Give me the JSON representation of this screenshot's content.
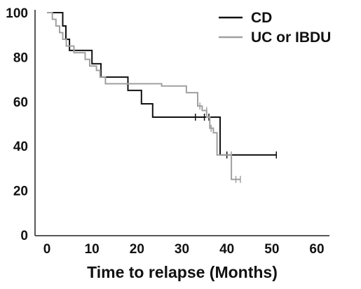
{
  "chart_data": {
    "type": "line",
    "title": "",
    "xlabel": "Time to relapse (Months)",
    "ylabel": "",
    "xlim": [
      0,
      60
    ],
    "ylim": [
      0,
      100
    ],
    "x_ticks": [
      0,
      10,
      20,
      30,
      40,
      50,
      60
    ],
    "y_ticks": [
      0,
      20,
      40,
      60,
      80,
      100
    ],
    "grid": false,
    "legend_position": "top-right",
    "series": [
      {
        "name": "CD",
        "color": "#111111",
        "step": true,
        "points": [
          [
            0,
            100
          ],
          [
            3.5,
            100
          ],
          [
            3.5,
            94
          ],
          [
            4.2,
            94
          ],
          [
            4.2,
            88
          ],
          [
            5,
            88
          ],
          [
            5,
            83
          ],
          [
            10,
            83
          ],
          [
            10,
            77
          ],
          [
            12,
            77
          ],
          [
            12,
            71
          ],
          [
            18,
            71
          ],
          [
            18,
            65
          ],
          [
            21,
            65
          ],
          [
            21,
            59
          ],
          [
            23.5,
            59
          ],
          [
            23.5,
            53
          ],
          [
            38.5,
            53
          ],
          [
            38.5,
            36
          ],
          [
            51,
            36
          ]
        ],
        "censored": [
          [
            33,
            53
          ],
          [
            35,
            53
          ],
          [
            36,
            53
          ],
          [
            40,
            36
          ],
          [
            51,
            36
          ]
        ]
      },
      {
        "name": "UC or IBDU",
        "color": "#a0a0a0",
        "step": true,
        "points": [
          [
            0,
            100
          ],
          [
            1.2,
            100
          ],
          [
            1.2,
            97
          ],
          [
            2,
            97
          ],
          [
            2,
            94
          ],
          [
            2.8,
            94
          ],
          [
            2.8,
            91
          ],
          [
            3.5,
            91
          ],
          [
            3.5,
            88
          ],
          [
            4.3,
            88
          ],
          [
            4.3,
            85
          ],
          [
            6,
            85
          ],
          [
            6,
            82
          ],
          [
            8.5,
            82
          ],
          [
            8.5,
            79
          ],
          [
            9.5,
            79
          ],
          [
            9.5,
            76
          ],
          [
            11,
            76
          ],
          [
            11,
            74
          ],
          [
            11.8,
            74
          ],
          [
            11.8,
            71
          ],
          [
            13,
            71
          ],
          [
            13,
            68
          ],
          [
            22,
            68
          ],
          [
            22,
            68
          ],
          [
            25,
            68
          ],
          [
            25,
            68
          ],
          [
            25.5,
            68
          ],
          [
            25.5,
            67
          ],
          [
            31,
            67
          ],
          [
            31,
            64
          ],
          [
            33.5,
            64
          ],
          [
            33.5,
            58
          ],
          [
            34.5,
            58
          ],
          [
            34.5,
            56
          ],
          [
            35.5,
            56
          ],
          [
            35.5,
            53
          ],
          [
            36.2,
            53
          ],
          [
            36.2,
            48
          ],
          [
            37,
            48
          ],
          [
            37,
            46
          ],
          [
            37.8,
            46
          ],
          [
            37.8,
            36
          ],
          [
            41,
            36
          ],
          [
            41,
            25
          ],
          [
            43,
            25
          ]
        ],
        "censored": [
          [
            34,
            58
          ],
          [
            35.5,
            56
          ],
          [
            36.5,
            48
          ],
          [
            41,
            36
          ],
          [
            42,
            25
          ],
          [
            43,
            25
          ]
        ]
      }
    ]
  }
}
